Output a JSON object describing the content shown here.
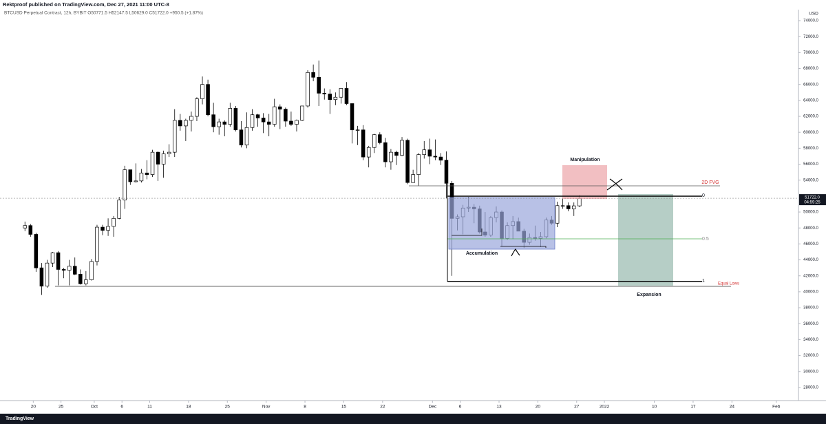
{
  "chart_data": {
    "type": "candlestick",
    "title": "Rektproof published on TradingView.com, Dec 27, 2021 11:00 UTC-8",
    "subtitle": "BTCUSD Perpetual Contract, 12h, BYBIT  O50771.5  H52147.5  L50629.0  C51722.0  +950.5 (+1.87%)",
    "y_unit": "USD",
    "last_price_label": "51722.0",
    "countdown": "04:59:25",
    "footer": "TradingView",
    "annotations": {
      "manipulation": "Manipulation",
      "fvg": "2D FVG",
      "fib_0": "0",
      "fib_05": "0.5",
      "fib_1": "1",
      "equal_lows": "Equal Lows",
      "accumulation": "Accumulation",
      "expansion": "Expansion"
    },
    "up_color": "#ffffff",
    "down_color": "#000000",
    "outline_color": "#000000",
    "x": [
      "2021-09-18",
      "2021-09-19",
      "2021-09-20",
      "2021-09-21",
      "2021-09-22",
      "2021-09-23",
      "2021-09-24",
      "2021-09-25",
      "2021-09-26",
      "2021-09-27",
      "2021-09-28",
      "2021-09-29",
      "2021-09-30",
      "2021-10-01",
      "2021-10-02",
      "2021-10-03",
      "2021-10-04",
      "2021-10-05",
      "2021-10-06",
      "2021-10-07",
      "2021-10-08",
      "2021-10-09",
      "2021-10-10",
      "2021-10-11",
      "2021-10-12",
      "2021-10-13",
      "2021-10-14",
      "2021-10-15",
      "2021-10-16",
      "2021-10-17",
      "2021-10-18",
      "2021-10-19",
      "2021-10-20",
      "2021-10-21",
      "2021-10-22",
      "2021-10-23",
      "2021-10-24",
      "2021-10-25",
      "2021-10-26",
      "2021-10-27",
      "2021-10-28",
      "2021-10-29",
      "2021-10-30",
      "2021-10-31",
      "2021-11-01",
      "2021-11-02",
      "2021-11-03",
      "2021-11-04",
      "2021-11-05",
      "2021-11-06",
      "2021-11-07",
      "2021-11-08",
      "2021-11-09",
      "2021-11-10",
      "2021-11-11",
      "2021-11-12",
      "2021-11-13",
      "2021-11-14",
      "2021-11-15",
      "2021-11-16",
      "2021-11-17",
      "2021-11-18",
      "2021-11-19",
      "2021-11-20",
      "2021-11-21",
      "2021-11-22",
      "2021-11-23",
      "2021-11-24",
      "2021-11-25",
      "2021-11-26",
      "2021-11-27",
      "2021-11-28",
      "2021-11-29",
      "2021-11-30",
      "2021-12-01",
      "2021-12-02",
      "2021-12-03",
      "2021-12-04",
      "2021-12-05",
      "2021-12-06",
      "2021-12-07",
      "2021-12-08",
      "2021-12-09",
      "2021-12-10",
      "2021-12-11",
      "2021-12-12",
      "2021-12-13",
      "2021-12-14",
      "2021-12-15",
      "2021-12-16",
      "2021-12-17",
      "2021-12-18",
      "2021-12-19",
      "2021-12-20",
      "2021-12-21",
      "2021-12-22",
      "2021-12-23",
      "2021-12-24",
      "2021-12-25",
      "2021-12-26",
      "2021-12-27"
    ],
    "open": [
      48000,
      48300,
      47200,
      43000,
      40700,
      43600,
      44900,
      42800,
      42700,
      43200,
      42200,
      41000,
      41500,
      43800,
      48100,
      47700,
      48200,
      49200,
      51500,
      55300,
      53800,
      53900,
      54900,
      54700,
      57500,
      56000,
      57300,
      57500,
      61500,
      60800,
      61500,
      62000,
      64200,
      66000,
      62200,
      60700,
      61300,
      61000,
      63000,
      60300,
      58400,
      60600,
      62200,
      61800,
      61300,
      61000,
      63200,
      62900,
      61400,
      61000,
      61500,
      63300,
      67500,
      66900,
      64900,
      64800,
      64100,
      64400,
      65500,
      63600,
      60300,
      60300,
      56900,
      58100,
      59700,
      58700,
      56300,
      57500,
      57100,
      59000,
      53700,
      54700,
      57200,
      57800,
      57000,
      56900,
      56500,
      53600,
      49200,
      49400,
      50500,
      50600,
      50400,
      47500,
      47100,
      49300,
      50000,
      46700,
      48300,
      48800,
      47600,
      46200,
      46800,
      46700,
      46900,
      49000,
      48600,
      50800,
      50800,
      50400,
      50771.5
    ],
    "high": [
      48800,
      48500,
      47400,
      43600,
      44000,
      45000,
      45100,
      43000,
      44000,
      44300,
      42800,
      42600,
      44100,
      48400,
      48400,
      49200,
      49500,
      51900,
      55800,
      55300,
      56100,
      55400,
      56500,
      57800,
      57600,
      57700,
      58500,
      62900,
      62300,
      61700,
      62600,
      64400,
      67000,
      66600,
      63700,
      61700,
      61500,
      63700,
      63300,
      61400,
      62500,
      62900,
      62300,
      62400,
      62300,
      64200,
      63500,
      63100,
      62600,
      61600,
      63300,
      67800,
      68500,
      69000,
      65500,
      65400,
      65000,
      65500,
      66300,
      63600,
      60800,
      60900,
      58300,
      59800,
      60000,
      59300,
      57900,
      57700,
      59400,
      59200,
      55300,
      57400,
      58900,
      59200,
      59100,
      57400,
      57600,
      53900,
      49700,
      50900,
      51900,
      51000,
      50800,
      50000,
      49500,
      50700,
      50200,
      48700,
      49500,
      49300,
      47900,
      47300,
      48300,
      47500,
      49300,
      49500,
      51300,
      51800,
      51200,
      51200,
      52147.5
    ],
    "low": [
      47600,
      46900,
      42500,
      39600,
      40500,
      43100,
      40800,
      41700,
      40800,
      42100,
      40900,
      40800,
      41400,
      43300,
      47100,
      47000,
      46900,
      49100,
      50400,
      53400,
      53700,
      53700,
      54100,
      54400,
      53900,
      54300,
      56900,
      56900,
      60200,
      58900,
      60100,
      61400,
      63500,
      62000,
      60000,
      59700,
      59500,
      60700,
      60100,
      58100,
      58000,
      60200,
      60700,
      59900,
      59500,
      60700,
      60400,
      60700,
      60800,
      60100,
      61400,
      63100,
      66400,
      63300,
      64100,
      62300,
      63400,
      63600,
      63400,
      58600,
      58400,
      56500,
      55600,
      57400,
      58500,
      55600,
      55300,
      55900,
      57000,
      53500,
      53700,
      53300,
      56700,
      56000,
      56500,
      55900,
      51700,
      42000,
      47700,
      47200,
      50000,
      48600,
      47300,
      46900,
      46900,
      48700,
      45700,
      46500,
      46600,
      47600,
      45500,
      45900,
      46400,
      45600,
      46700,
      48400,
      48100,
      50400,
      50100,
      49500,
      50629
    ],
    "close": [
      48300,
      47200,
      43000,
      40700,
      43600,
      44900,
      42800,
      42700,
      43200,
      42200,
      41000,
      41500,
      43800,
      48100,
      47700,
      48200,
      49200,
      51500,
      55300,
      53800,
      53900,
      54900,
      54700,
      57500,
      56000,
      57300,
      57500,
      61500,
      60800,
      61500,
      62000,
      64200,
      66000,
      62200,
      60700,
      61300,
      61000,
      63000,
      60300,
      58400,
      60600,
      62200,
      61800,
      61300,
      61000,
      63200,
      62900,
      61400,
      61000,
      61500,
      63300,
      67500,
      66900,
      64900,
      64800,
      64100,
      64400,
      65500,
      63600,
      60300,
      60300,
      56900,
      58100,
      59700,
      58700,
      56300,
      57500,
      57100,
      59000,
      53700,
      54700,
      57200,
      57800,
      57000,
      56900,
      56500,
      53600,
      49200,
      49400,
      50500,
      50600,
      50400,
      47500,
      47100,
      49300,
      50000,
      46700,
      48300,
      48800,
      47600,
      46200,
      46800,
      46700,
      46900,
      49000,
      48600,
      50800,
      50800,
      50400,
      50771.5,
      51722
    ],
    "xlim": [
      "2021-09-14",
      "2022-02-05"
    ],
    "xticks": [
      {
        "value": "2021-09-20",
        "label": "20"
      },
      {
        "value": "2021-09-25",
        "label": "25"
      },
      {
        "value": "2021-10-01",
        "label": "Oct"
      },
      {
        "value": "2021-10-06",
        "label": "6"
      },
      {
        "value": "2021-10-11",
        "label": "11"
      },
      {
        "value": "2021-10-18",
        "label": "18"
      },
      {
        "value": "2021-10-25",
        "label": "25"
      },
      {
        "value": "2021-11-01",
        "label": "Nov"
      },
      {
        "value": "2021-11-08",
        "label": "8"
      },
      {
        "value": "2021-11-15",
        "label": "15"
      },
      {
        "value": "2021-11-22",
        "label": "22"
      },
      {
        "value": "2021-12-01",
        "label": "Dec"
      },
      {
        "value": "2021-12-06",
        "label": "6"
      },
      {
        "value": "2021-12-13",
        "label": "13"
      },
      {
        "value": "2021-12-20",
        "label": "20"
      },
      {
        "value": "2021-12-27",
        "label": "27"
      },
      {
        "value": "2022-01-01",
        "label": "2022"
      },
      {
        "value": "2022-01-10",
        "label": "10"
      },
      {
        "value": "2022-01-17",
        "label": "17"
      },
      {
        "value": "2022-01-24",
        "label": "24"
      },
      {
        "value": "2022-02-01",
        "label": "Feb"
      }
    ],
    "ylim": [
      26525,
      75295
    ],
    "yticks": [
      {
        "value": 74000,
        "label": "74000.0"
      },
      {
        "value": 72000,
        "label": "72000.0"
      },
      {
        "value": 70000,
        "label": "70000.0"
      },
      {
        "value": 68000,
        "label": "68000.0"
      },
      {
        "value": 66000,
        "label": "66000.0"
      },
      {
        "value": 64000,
        "label": "64000.0"
      },
      {
        "value": 62000,
        "label": "62000.0"
      },
      {
        "value": 60000,
        "label": "60000.0"
      },
      {
        "value": 58000,
        "label": "58000.0"
      },
      {
        "value": 56000,
        "label": "56000.0"
      },
      {
        "value": 54000,
        "label": "54000.0"
      },
      {
        "value": 50000,
        "label": "50000.0"
      },
      {
        "value": 48000,
        "label": "48000.0"
      },
      {
        "value": 46000,
        "label": "46000.0"
      },
      {
        "value": 44000,
        "label": "44000.0"
      },
      {
        "value": 42000,
        "label": "42000.0"
      },
      {
        "value": 40000,
        "label": "40000.0"
      },
      {
        "value": 38000,
        "label": "38000.0"
      },
      {
        "value": 36000,
        "label": "36000.0"
      },
      {
        "value": 34000,
        "label": "34000.0"
      },
      {
        "value": 32000,
        "label": "32000.0"
      },
      {
        "value": 30000,
        "label": "30000.0"
      },
      {
        "value": 28000,
        "label": "28000.0"
      }
    ],
    "grid": false
  }
}
